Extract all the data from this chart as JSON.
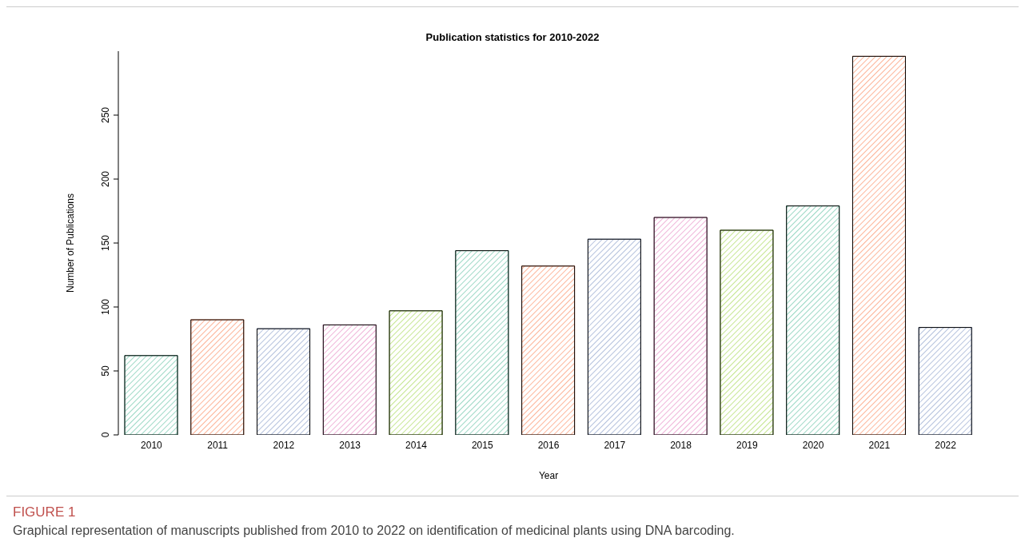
{
  "chart_data": {
    "type": "bar",
    "title": "Publication statistics for 2010-2022",
    "xlabel": "Year",
    "ylabel": "Number of Publications",
    "categories": [
      "2010",
      "2011",
      "2012",
      "2013",
      "2014",
      "2015",
      "2016",
      "2017",
      "2018",
      "2019",
      "2020",
      "2021",
      "2022"
    ],
    "values": [
      62,
      90,
      83,
      86,
      97,
      144,
      132,
      153,
      170,
      160,
      179,
      296,
      84
    ],
    "colors": [
      "#66c2a5",
      "#fc8d62",
      "#8da0cb",
      "#e78ac3",
      "#a6d854",
      "#66c2a5",
      "#fc8d62",
      "#8da0cb",
      "#e78ac3",
      "#a6d854",
      "#66c2a5",
      "#fc8d62",
      "#8da0cb"
    ],
    "ylim": [
      0,
      300
    ],
    "yticks": [
      0,
      50,
      100,
      150,
      200,
      250
    ],
    "grid": false,
    "annotations": [
      "FIGURE 1",
      "Graphical representation of manuscripts published from 2010 to 2022 on identification of medicinal plants using DNA barcoding."
    ]
  }
}
